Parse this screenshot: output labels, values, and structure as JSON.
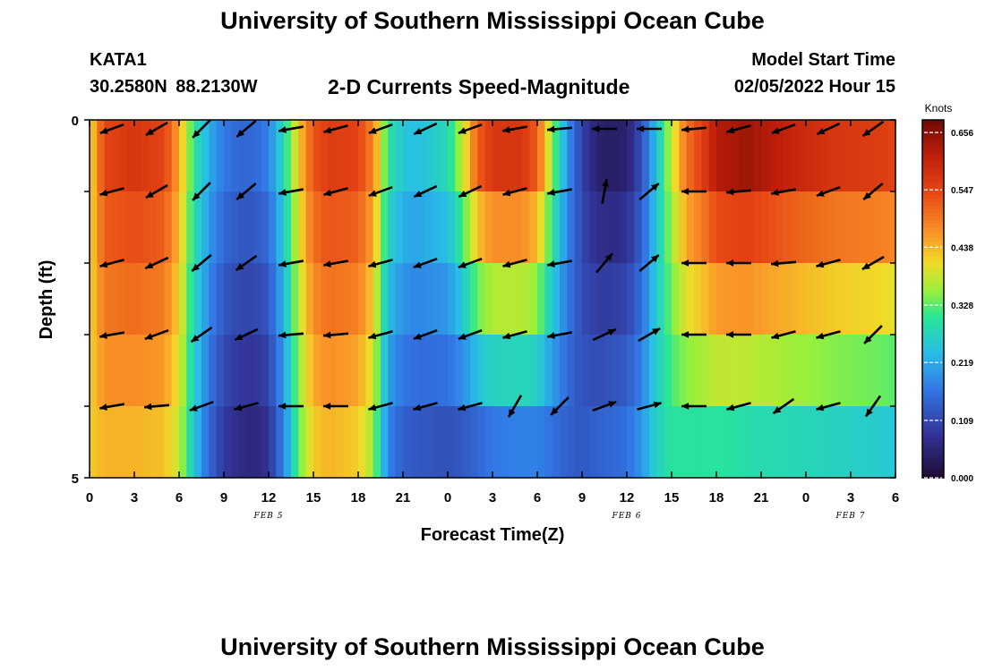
{
  "header": {
    "title": "University of Southern Mississippi Ocean Cube",
    "station_id": "KATA1",
    "station_coords": "30.2580N  88.2130W",
    "subtitle": "2-D Currents Speed-Magnitude",
    "model_start_label": "Model Start Time",
    "model_start_value": "02/05/2022 Hour 15"
  },
  "footer": {
    "title": "University of Southern Mississippi Ocean Cube"
  },
  "chart_data": {
    "type": "heatmap",
    "title": "2-D Currents Speed-Magnitude",
    "xlabel": "Forecast Time(Z)",
    "ylabel": "Depth (ft)",
    "x_tick_labels": [
      "0",
      "3",
      "6",
      "9",
      "12",
      "15",
      "18",
      "21",
      "0",
      "3",
      "6",
      "9",
      "12",
      "15",
      "18",
      "21",
      "0",
      "3",
      "6"
    ],
    "date_labels": [
      {
        "label": "FEB 5",
        "at_tick": 4
      },
      {
        "label": "FEB 6",
        "at_tick": 12
      },
      {
        "label": "FEB 7",
        "at_tick": 17
      }
    ],
    "ylim": [
      0,
      5
    ],
    "y_tick_labels": [
      {
        "value": 0,
        "label": "0"
      },
      {
        "value": 5,
        "label": "5"
      }
    ],
    "x_hours_range": [
      0,
      54
    ],
    "depth_bins": [
      0,
      1,
      2,
      3,
      4
    ],
    "colorbar": {
      "title": "Knots",
      "tick_labels": [
        "0.656",
        "0.547",
        "0.438",
        "0.328",
        "0.219",
        "0.109",
        "0.000"
      ],
      "range": [
        0,
        0.68
      ]
    },
    "speed_profile": {
      "hours": [
        0,
        1,
        3,
        5,
        6,
        7,
        8,
        9,
        10,
        11,
        12,
        13,
        14,
        15,
        16,
        18,
        19,
        20,
        21,
        22,
        24,
        25,
        26,
        27,
        29,
        30,
        31,
        32,
        33,
        34,
        35,
        36,
        37,
        38,
        39,
        40,
        41,
        42,
        44,
        47,
        50,
        53,
        54
      ],
      "surface": [
        0.4,
        0.55,
        0.57,
        0.55,
        0.45,
        0.3,
        0.22,
        0.17,
        0.15,
        0.15,
        0.18,
        0.28,
        0.42,
        0.53,
        0.56,
        0.55,
        0.48,
        0.3,
        0.25,
        0.24,
        0.28,
        0.38,
        0.52,
        0.57,
        0.57,
        0.52,
        0.35,
        0.2,
        0.1,
        0.05,
        0.04,
        0.05,
        0.12,
        0.25,
        0.38,
        0.5,
        0.55,
        0.62,
        0.64,
        0.6,
        0.57,
        0.56,
        0.55
      ],
      "bottom": [
        0.42,
        0.44,
        0.44,
        0.43,
        0.38,
        0.25,
        0.15,
        0.09,
        0.07,
        0.06,
        0.08,
        0.18,
        0.33,
        0.42,
        0.44,
        0.42,
        0.36,
        0.18,
        0.14,
        0.13,
        0.12,
        0.13,
        0.15,
        0.17,
        0.18,
        0.18,
        0.16,
        0.14,
        0.13,
        0.14,
        0.15,
        0.16,
        0.2,
        0.27,
        0.3,
        0.3,
        0.3,
        0.3,
        0.29,
        0.28,
        0.27,
        0.26,
        0.25
      ]
    },
    "arrows": {
      "column_hours": [
        1.5,
        4.5,
        7.5,
        10.5,
        13.5,
        16.5,
        19.5,
        22.5,
        25.5,
        28.5,
        31.5,
        34.5,
        37.5,
        40.5,
        43.5,
        46.5,
        49.5,
        52.5
      ],
      "row_depths": [
        0.1,
        1.0,
        2.0,
        3.0,
        4.0
      ],
      "directions_deg": [
        [
          200,
          210,
          225,
          220,
          190,
          195,
          200,
          205,
          200,
          190,
          185,
          180,
          180,
          185,
          195,
          200,
          205,
          215
        ],
        [
          195,
          210,
          225,
          220,
          190,
          195,
          200,
          205,
          205,
          195,
          190,
          80,
          40,
          180,
          185,
          190,
          200,
          220
        ],
        [
          195,
          205,
          220,
          215,
          190,
          190,
          195,
          200,
          200,
          195,
          190,
          50,
          40,
          180,
          180,
          185,
          195,
          210
        ],
        [
          190,
          200,
          215,
          205,
          185,
          185,
          195,
          200,
          200,
          195,
          190,
          25,
          30,
          180,
          180,
          195,
          195,
          225
        ],
        [
          190,
          185,
          200,
          195,
          180,
          180,
          195,
          195,
          195,
          240,
          225,
          20,
          15,
          180,
          195,
          215,
          195,
          235
        ]
      ]
    }
  }
}
